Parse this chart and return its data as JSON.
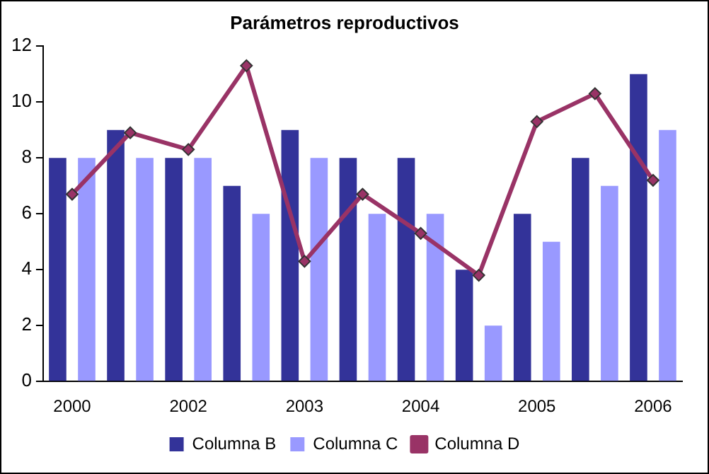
{
  "chart_data": {
    "type": "bar",
    "title": "Parámetros reproductivos",
    "categories": [
      "2000",
      null,
      "2002",
      null,
      "2003",
      null,
      "2004",
      null,
      "2005",
      null,
      "2006"
    ],
    "series": [
      {
        "name": "Columna B",
        "color": "#333399",
        "values": [
          8,
          9,
          8,
          7,
          9,
          8,
          8,
          4,
          6,
          8,
          11
        ]
      },
      {
        "name": "Columna C",
        "color": "#9999ff",
        "values": [
          8,
          8,
          8,
          6,
          8,
          6,
          6,
          2,
          5,
          7,
          9
        ]
      },
      {
        "name": "Columna D",
        "type": "line",
        "color": "#993366",
        "marker": "diamond",
        "values": [
          6.7,
          8.9,
          8.3,
          11.3,
          4.3,
          6.7,
          5.3,
          3.8,
          9.3,
          10.3,
          7.2
        ]
      }
    ],
    "ylim": [
      0,
      12
    ],
    "yticks": [
      0,
      2,
      4,
      6,
      8,
      10,
      12
    ],
    "grid": false,
    "legend": "bottom"
  }
}
